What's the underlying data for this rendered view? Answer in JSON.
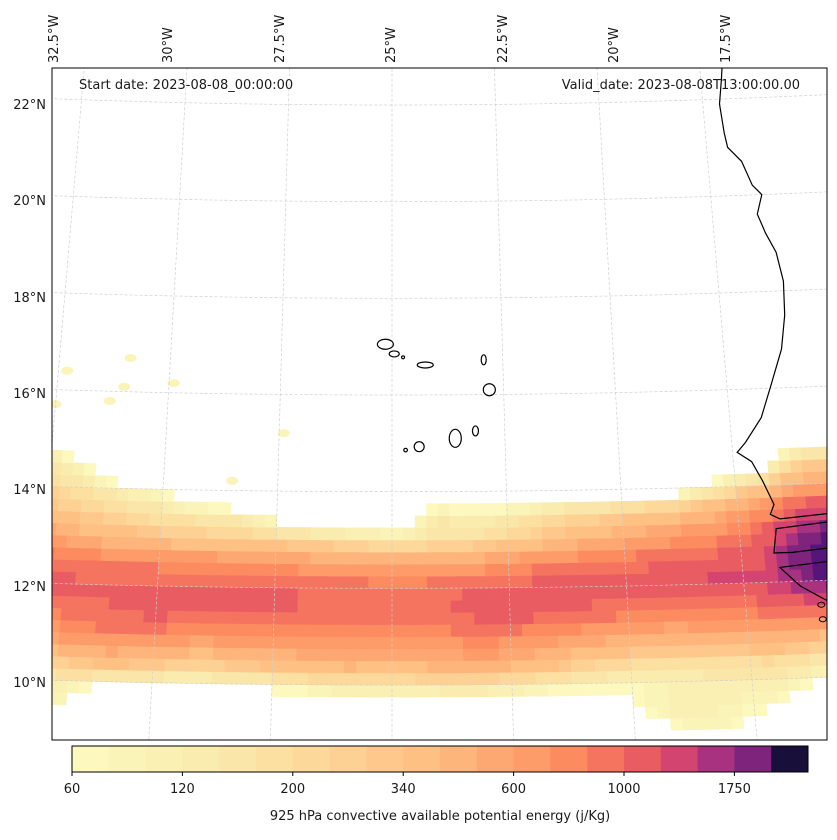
{
  "chart_data": {
    "type": "heatmap",
    "subtype": "filled-contour map",
    "title": "",
    "annotations": {
      "start_date": "Start date: 2023-08-08_00:00:00",
      "valid_date": "Valid_date: 2023-08-08T13:00:00.00"
    },
    "projection": "Lambert-like conic (curved graticule)",
    "lon_range": [
      -33.0,
      -15.0
    ],
    "lat_range": [
      9.0,
      22.8
    ],
    "lon_ticks": [
      -32.5,
      -30,
      -27.5,
      -25,
      -22.5,
      -20,
      -17.5
    ],
    "lon_tick_labels": [
      "32.5°W",
      "30°W",
      "27.5°W",
      "25°W",
      "22.5°W",
      "20°W",
      "17.5°W"
    ],
    "lat_ticks": [
      10,
      12,
      14,
      16,
      18,
      20,
      22
    ],
    "lat_tick_labels": [
      "10°N",
      "12°N",
      "14°N",
      "16°N",
      "18°N",
      "20°N",
      "22°N"
    ],
    "gridlines": true,
    "colorbar": {
      "label": "925 hPa convective available potential energy (j/Kg)",
      "placement": "bottom",
      "levels_count": 20,
      "tick_labels": [
        "60",
        "120",
        "200",
        "340",
        "600",
        "1000",
        "1750"
      ],
      "tick_level_index": [
        0,
        3,
        6,
        9,
        12,
        15,
        18
      ],
      "colormap": "magma_r",
      "colors": [
        "#fcf8be",
        "#fbf4b8",
        "#fbf0b3",
        "#faebae",
        "#fae6a8",
        "#fbe0a2",
        "#fcd99b",
        "#fdd093",
        "#fec88c",
        "#ffc084",
        "#fdb57c",
        "#fda873",
        "#fd9b69",
        "#fc8b60",
        "#f47460",
        "#e95c62",
        "#d44470",
        "#a8327f",
        "#7f247c",
        "#561579",
        "#180f3b"
      ]
    },
    "field": {
      "description": "Band of elevated 925 hPa CAPE along ~11-13N, max ~1000-1500 j/Kg near West African coast (~16.5W, 12.5N); weak patches (60-120) scattered north.",
      "units": "j/Kg",
      "lons": [
        -33,
        -32,
        -31,
        -30,
        -29,
        -28,
        -27,
        -26,
        -25,
        -24,
        -23,
        -22,
        -21,
        -20,
        -19,
        -18,
        -17,
        -16,
        -15
      ],
      "lats": [
        9.0,
        9.5,
        10.0,
        10.5,
        11.0,
        11.5,
        12.0,
        12.5,
        13.0,
        13.5,
        14.0,
        14.5,
        15.0
      ],
      "values": [
        [
          90,
          0,
          0,
          0,
          0,
          0,
          0,
          0,
          0,
          0,
          0,
          0,
          0,
          0,
          70,
          70,
          0,
          0,
          0
        ],
        [
          80,
          70,
          0,
          0,
          0,
          0,
          0,
          0,
          0,
          0,
          0,
          0,
          0,
          60,
          90,
          80,
          70,
          0,
          0
        ],
        [
          60,
          100,
          70,
          60,
          60,
          70,
          90,
          110,
          110,
          120,
          120,
          100,
          80,
          70,
          80,
          90,
          90,
          70,
          0
        ],
        [
          80,
          200,
          260,
          230,
          200,
          230,
          260,
          300,
          280,
          300,
          320,
          260,
          200,
          160,
          140,
          150,
          160,
          130,
          90
        ],
        [
          170,
          380,
          450,
          420,
          380,
          420,
          420,
          430,
          400,
          420,
          440,
          400,
          360,
          330,
          300,
          320,
          340,
          300,
          200
        ],
        [
          330,
          480,
          520,
          560,
          520,
          520,
          520,
          480,
          470,
          520,
          560,
          560,
          520,
          470,
          440,
          460,
          500,
          520,
          520
        ],
        [
          620,
          540,
          520,
          540,
          560,
          560,
          520,
          500,
          480,
          500,
          520,
          560,
          560,
          560,
          580,
          620,
          600,
          900,
          1300
        ],
        [
          520,
          480,
          440,
          420,
          400,
          380,
          360,
          340,
          300,
          320,
          360,
          420,
          460,
          480,
          520,
          560,
          600,
          1100,
          1500
        ],
        [
          380,
          300,
          240,
          200,
          180,
          160,
          140,
          120,
          100,
          110,
          130,
          180,
          240,
          300,
          360,
          420,
          520,
          900,
          1000
        ],
        [
          260,
          180,
          140,
          110,
          90,
          70,
          0,
          0,
          0,
          100,
          80,
          110,
          140,
          170,
          200,
          260,
          380,
          600,
          600
        ],
        [
          200,
          120,
          80,
          60,
          0,
          0,
          0,
          0,
          0,
          0,
          0,
          0,
          0,
          0,
          0,
          80,
          160,
          300,
          300
        ],
        [
          140,
          80,
          0,
          0,
          0,
          0,
          0,
          0,
          0,
          0,
          0,
          0,
          0,
          0,
          0,
          0,
          0,
          150,
          150
        ],
        [
          80,
          0,
          0,
          0,
          0,
          0,
          0,
          0,
          0,
          0,
          0,
          0,
          0,
          0,
          0,
          0,
          0,
          0,
          0
        ]
      ],
      "weak_patches": [
        {
          "lon": -30.9,
          "lat": 16.7,
          "value": 70
        },
        {
          "lon": -32.3,
          "lat": 16.4,
          "value": 70
        },
        {
          "lon": -31.0,
          "lat": 16.1,
          "value": 70
        },
        {
          "lon": -29.9,
          "lat": 16.2,
          "value": 70
        },
        {
          "lon": -32.5,
          "lat": 15.7,
          "value": 70
        },
        {
          "lon": -31.3,
          "lat": 15.8,
          "value": 70
        },
        {
          "lon": -27.4,
          "lat": 15.2,
          "value": 70
        },
        {
          "lon": -28.5,
          "lat": 14.2,
          "value": 70
        }
      ]
    },
    "coastline_labels": [
      "West Africa coast (Mauritania / Senegal / Gambia / Guinea-Bissau)",
      "Cape Verde islands"
    ]
  }
}
